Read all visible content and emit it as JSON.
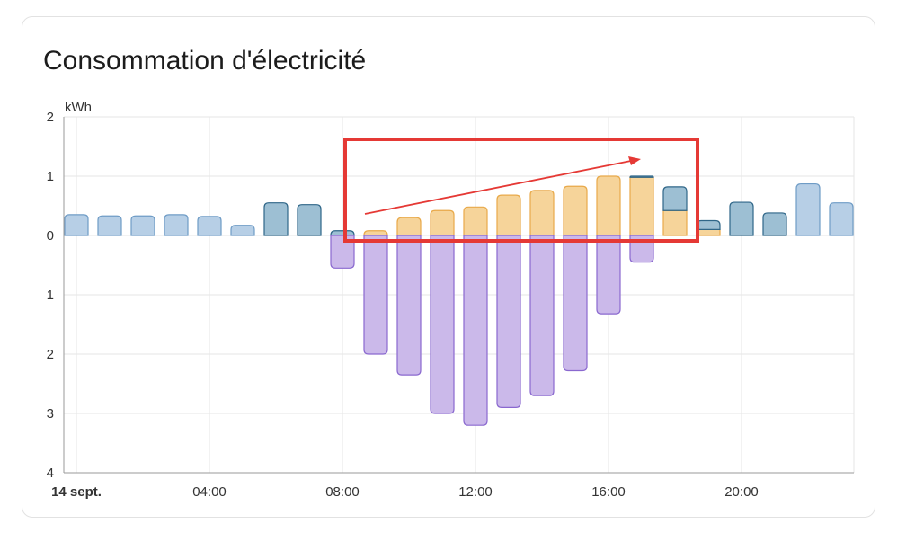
{
  "card": {
    "title": "Consommation d'électricité"
  },
  "chart_data": {
    "type": "bar",
    "title": "Consommation d'électricité",
    "ylabel": "kWh",
    "ylim": [
      -4,
      2
    ],
    "y_ticks": [
      {
        "value": 2,
        "label": "2"
      },
      {
        "value": 1,
        "label": "1"
      },
      {
        "value": 0,
        "label": "0"
      },
      {
        "value": -1,
        "label": "1"
      },
      {
        "value": -2,
        "label": "2"
      },
      {
        "value": -3,
        "label": "3"
      },
      {
        "value": -4,
        "label": "4"
      }
    ],
    "x_ticks": [
      {
        "hour": 0,
        "label": "14 sept.",
        "bold": true
      },
      {
        "hour": 4,
        "label": "04:00",
        "bold": false
      },
      {
        "hour": 8,
        "label": "08:00",
        "bold": false
      },
      {
        "hour": 12,
        "label": "12:00",
        "bold": false
      },
      {
        "hour": 16,
        "label": "16:00",
        "bold": false
      },
      {
        "hour": 20,
        "label": "20:00",
        "bold": false
      }
    ],
    "categories": [
      "00:00",
      "01:00",
      "02:00",
      "03:00",
      "04:00",
      "05:00",
      "06:00",
      "07:00",
      "08:00",
      "09:00",
      "10:00",
      "11:00",
      "12:00",
      "13:00",
      "14:00",
      "15:00",
      "16:00",
      "17:00",
      "18:00",
      "19:00",
      "20:00",
      "21:00",
      "22:00",
      "23:00"
    ],
    "series": [
      {
        "key": "grid_light",
        "colors": {
          "fill": "#b7cfe6",
          "stroke": "#6f9cc6"
        },
        "values": [
          0.35,
          0.33,
          0.33,
          0.35,
          0.32,
          0.17,
          0,
          0,
          0,
          0,
          0,
          0,
          0,
          0,
          0,
          0,
          0,
          0,
          0,
          0,
          0,
          0,
          0.87,
          0.55
        ]
      },
      {
        "key": "solar_used",
        "colors": {
          "fill": "#f6d49a",
          "stroke": "#e8a94a"
        },
        "values": [
          0,
          0,
          0,
          0,
          0,
          0,
          0,
          0,
          0,
          0.08,
          0.3,
          0.42,
          0.48,
          0.68,
          0.76,
          0.83,
          1.0,
          0.98,
          0.42,
          0.1,
          0,
          0,
          0,
          0
        ]
      },
      {
        "key": "grid_dark",
        "colors": {
          "fill": "#9dbfd3",
          "stroke": "#2f6688"
        },
        "values": [
          0,
          0,
          0,
          0,
          0,
          0,
          0.55,
          0.52,
          0.08,
          0,
          0,
          0,
          0,
          0,
          0,
          0,
          0,
          0.02,
          0.4,
          0.15,
          0.56,
          0.38,
          0,
          0
        ]
      },
      {
        "key": "returned",
        "colors": {
          "fill": "#cbb9ea",
          "stroke": "#8a68cf"
        },
        "values": [
          0,
          0,
          0,
          0,
          0,
          0,
          0,
          0,
          -0.55,
          -2.0,
          -2.35,
          -3.0,
          -3.2,
          -2.9,
          -2.7,
          -2.28,
          -1.32,
          -0.45,
          0,
          0,
          0,
          0,
          0,
          0
        ]
      }
    ],
    "grid": true
  },
  "annotation": {
    "box_color": "#e53935",
    "arrow_color": "#e53935"
  }
}
